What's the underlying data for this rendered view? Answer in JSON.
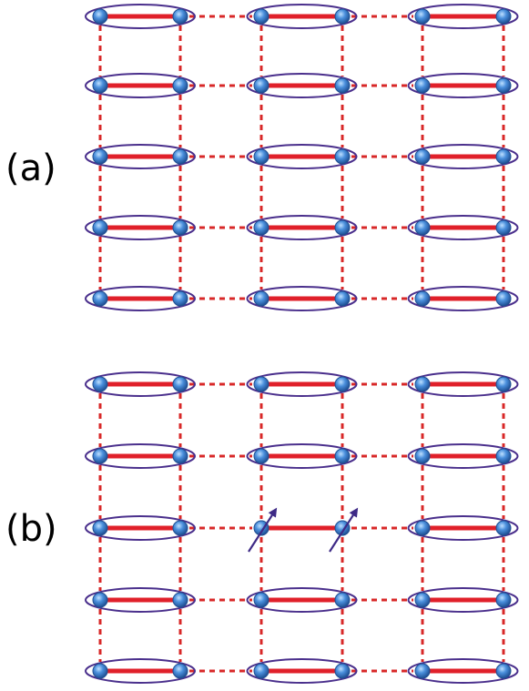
{
  "panels": [
    {
      "label": "(a)",
      "excited_dimer": null
    },
    {
      "label": "(b)",
      "excited_dimer": {
        "row": 2,
        "column": 1,
        "spins": [
          "up",
          "up"
        ]
      }
    }
  ],
  "lattice": {
    "rows_per_panel": 5,
    "dimers_per_row": 3
  },
  "colors": {
    "singlet_bond": "#e0202a",
    "dashed_bond": "#d82828",
    "ellipse": "#4a2f8c",
    "site_fill": "#3a7fd0",
    "site_dark": "#1f4f92",
    "spin_arrow": "#3e2a86"
  }
}
